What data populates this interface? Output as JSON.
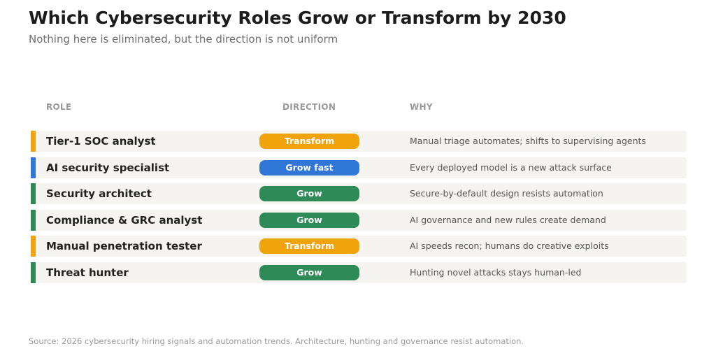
{
  "title": "Which Cybersecurity Roles Grow or Transform by 2030",
  "subtitle": "Nothing here is eliminated, but the direction is not uniform",
  "columns": {
    "role": "ROLE",
    "direction": "DIRECTION",
    "why": "WHY"
  },
  "colors": {
    "transform": "#f0a30a",
    "grow_fast": "#2f76d6",
    "grow": "#2e8b57"
  },
  "rows": [
    {
      "role": "Tier-1 SOC analyst",
      "direction": "Transform",
      "category": "transform",
      "why": "Manual triage automates; shifts to supervising agents"
    },
    {
      "role": "AI security specialist",
      "direction": "Grow fast",
      "category": "grow_fast",
      "why": "Every deployed model is a new attack surface"
    },
    {
      "role": "Security architect",
      "direction": "Grow",
      "category": "grow",
      "why": "Secure-by-default design resists automation"
    },
    {
      "role": "Compliance & GRC analyst",
      "direction": "Grow",
      "category": "grow",
      "why": "AI governance and new rules create demand"
    },
    {
      "role": "Manual penetration tester",
      "direction": "Transform",
      "category": "transform",
      "why": "AI speeds recon; humans do creative exploits"
    },
    {
      "role": "Threat hunter",
      "direction": "Grow",
      "category": "grow",
      "why": "Hunting novel attacks stays human-led"
    }
  ],
  "source": "Source: 2026 cybersecurity hiring signals and automation trends. Architecture, hunting and governance resist automation."
}
